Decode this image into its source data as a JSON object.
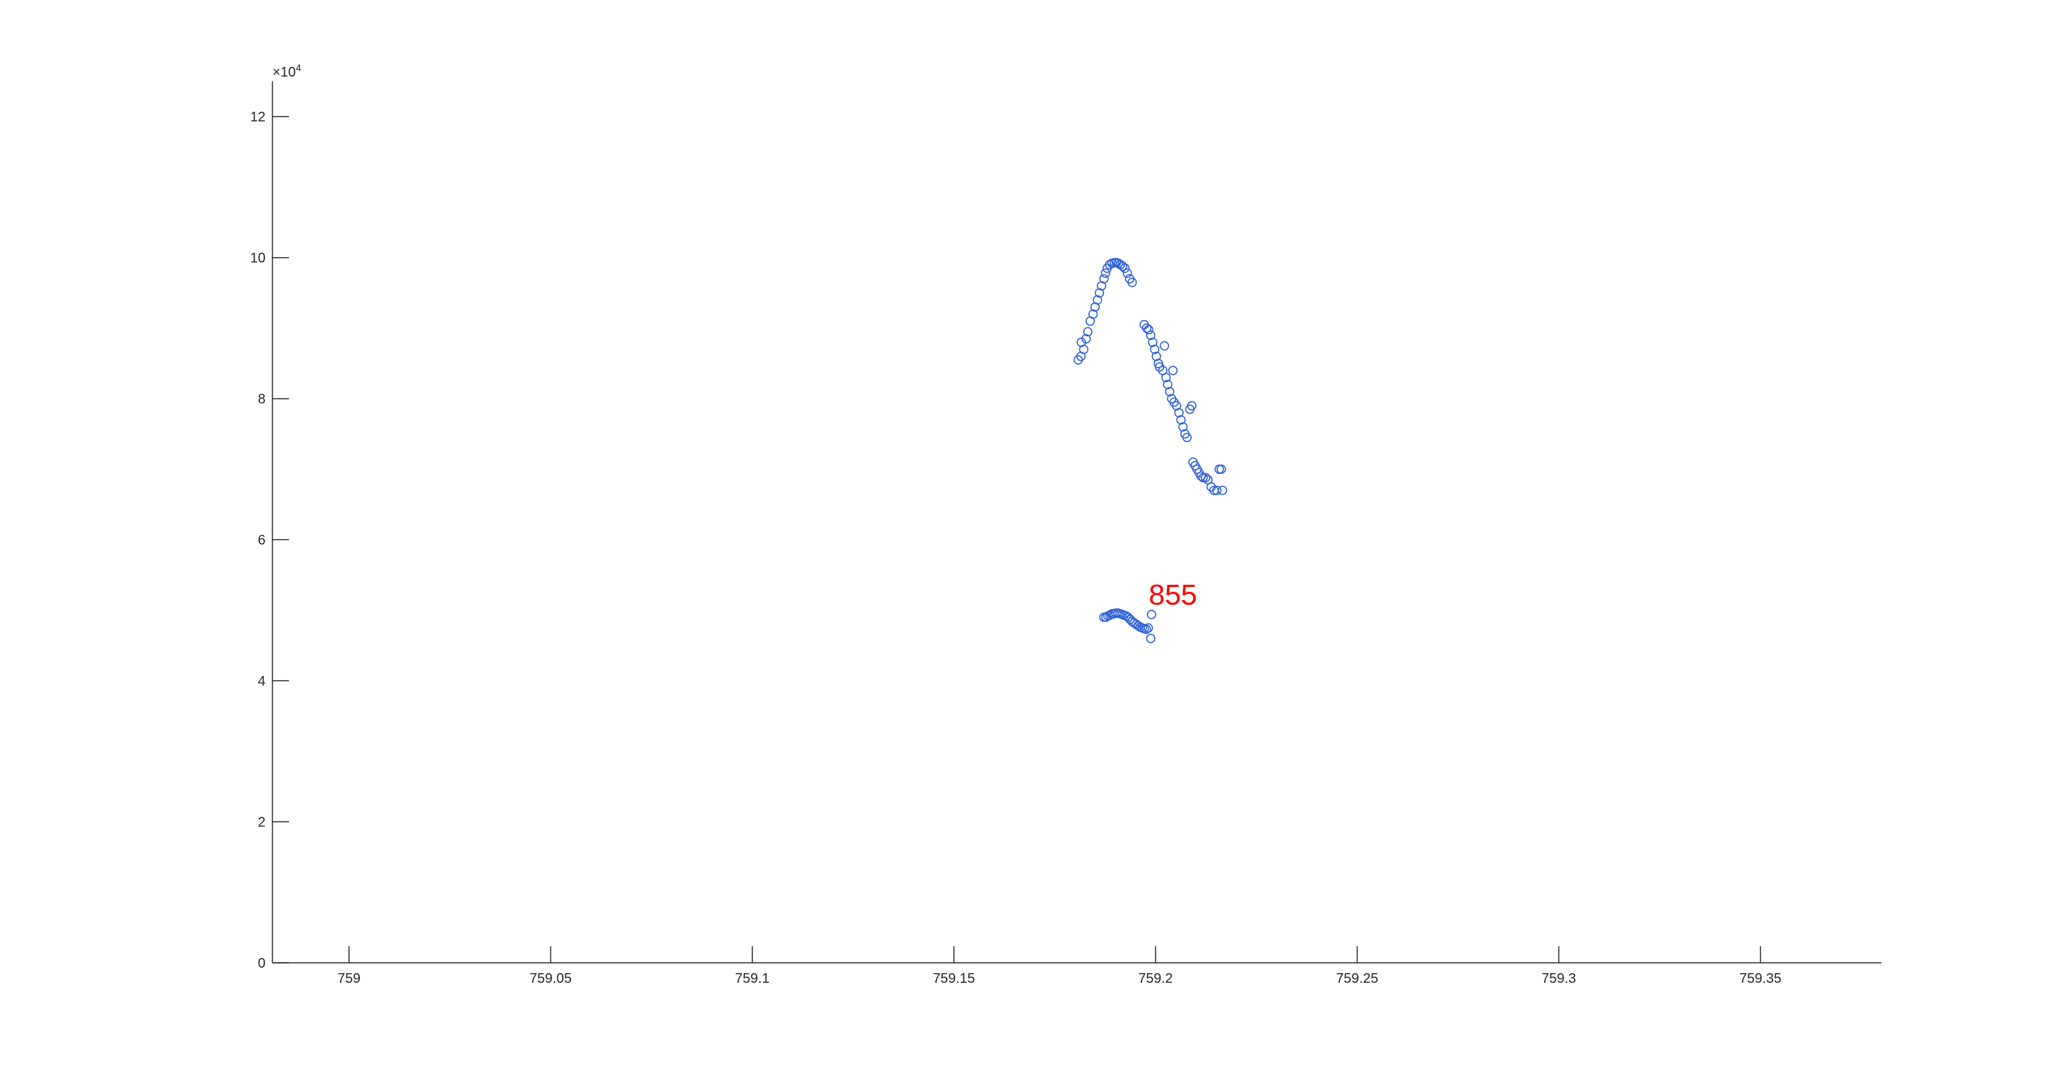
{
  "chart_data": {
    "type": "scatter",
    "xlim": [
      758.981,
      759.38
    ],
    "ylim": [
      0,
      12.5
    ],
    "y_exponent_label": "×10",
    "y_exponent_power": "4",
    "xticks": [
      759,
      759.05,
      759.1,
      759.15,
      759.2,
      759.25,
      759.3,
      759.35
    ],
    "xtick_labels": [
      "759",
      "759.05",
      "759.1",
      "759.15",
      "759.2",
      "759.25",
      "759.3",
      "759.35"
    ],
    "yticks": [
      0,
      2,
      4,
      6,
      8,
      10,
      12
    ],
    "ytick_labels": [
      "0",
      "2",
      "4",
      "6",
      "8",
      "10",
      "12"
    ],
    "grid": false,
    "marker_color": "#2e5fd6",
    "series": [
      {
        "marker": "open-circle",
        "points": [
          [
            759.1808,
            8.55
          ],
          [
            759.1815,
            8.6
          ],
          [
            759.1816,
            8.8
          ],
          [
            759.1822,
            8.7
          ],
          [
            759.1828,
            8.85
          ],
          [
            759.1832,
            8.95
          ],
          [
            759.1838,
            9.1
          ],
          [
            759.1845,
            9.2
          ],
          [
            759.185,
            9.3
          ],
          [
            759.1856,
            9.4
          ],
          [
            759.1861,
            9.5
          ],
          [
            759.1866,
            9.6
          ],
          [
            759.1872,
            9.7
          ],
          [
            759.1876,
            9.78
          ],
          [
            759.188,
            9.85
          ],
          [
            759.1886,
            9.9
          ],
          [
            759.1892,
            9.92
          ],
          [
            759.1898,
            9.93
          ],
          [
            759.1903,
            9.93
          ],
          [
            759.1908,
            9.92
          ],
          [
            759.1913,
            9.9
          ],
          [
            759.1918,
            9.88
          ],
          [
            759.1924,
            9.85
          ],
          [
            759.193,
            9.78
          ],
          [
            759.1936,
            9.7
          ],
          [
            759.1942,
            9.65
          ],
          [
            759.1972,
            9.05
          ],
          [
            759.1978,
            9.0
          ],
          [
            759.1983,
            8.98
          ],
          [
            759.1988,
            8.9
          ],
          [
            759.1993,
            8.8
          ],
          [
            759.1998,
            8.7
          ],
          [
            759.2002,
            8.6
          ],
          [
            759.2007,
            8.5
          ],
          [
            759.201,
            8.45
          ],
          [
            759.2018,
            8.4
          ],
          [
            759.2022,
            8.75
          ],
          [
            759.2026,
            8.3
          ],
          [
            759.203,
            8.2
          ],
          [
            759.2035,
            8.1
          ],
          [
            759.204,
            8.0
          ],
          [
            759.2043,
            8.4
          ],
          [
            759.2046,
            7.95
          ],
          [
            759.2052,
            7.9
          ],
          [
            759.2058,
            7.8
          ],
          [
            759.2063,
            7.7
          ],
          [
            759.2068,
            7.6
          ],
          [
            759.2073,
            7.5
          ],
          [
            759.2078,
            7.45
          ],
          [
            759.2085,
            7.85
          ],
          [
            759.209,
            7.9
          ],
          [
            759.2093,
            7.1
          ],
          [
            759.2098,
            7.05
          ],
          [
            759.2103,
            7.0
          ],
          [
            759.2108,
            6.95
          ],
          [
            759.2113,
            6.9
          ],
          [
            759.2118,
            6.88
          ],
          [
            759.2124,
            6.88
          ],
          [
            759.213,
            6.85
          ],
          [
            759.2138,
            6.75
          ],
          [
            759.2145,
            6.7
          ],
          [
            759.2152,
            6.7
          ],
          [
            759.2158,
            7.0
          ],
          [
            759.2163,
            7.0
          ],
          [
            759.2166,
            6.7
          ]
        ]
      },
      {
        "marker": "open-circle",
        "points": [
          [
            759.1872,
            4.9
          ],
          [
            759.1877,
            4.9
          ],
          [
            759.1882,
            4.92
          ],
          [
            759.1887,
            4.93
          ],
          [
            759.1892,
            4.95
          ],
          [
            759.1897,
            4.95
          ],
          [
            759.1902,
            4.96
          ],
          [
            759.1907,
            4.96
          ],
          [
            759.1912,
            4.95
          ],
          [
            759.1917,
            4.94
          ],
          [
            759.1922,
            4.93
          ],
          [
            759.1927,
            4.92
          ],
          [
            759.1932,
            4.9
          ],
          [
            759.1937,
            4.87
          ],
          [
            759.1942,
            4.84
          ],
          [
            759.1947,
            4.82
          ],
          [
            759.1952,
            4.8
          ],
          [
            759.1957,
            4.78
          ],
          [
            759.1962,
            4.76
          ],
          [
            759.1967,
            4.75
          ],
          [
            759.1972,
            4.74
          ],
          [
            759.1977,
            4.73
          ],
          [
            759.1982,
            4.75
          ],
          [
            759.199,
            4.94
          ],
          [
            759.1988,
            4.6
          ]
        ]
      }
    ],
    "annotations": [
      {
        "text": "855",
        "x": 759.1983,
        "y": 5.08,
        "color": "#ff0000"
      }
    ]
  }
}
